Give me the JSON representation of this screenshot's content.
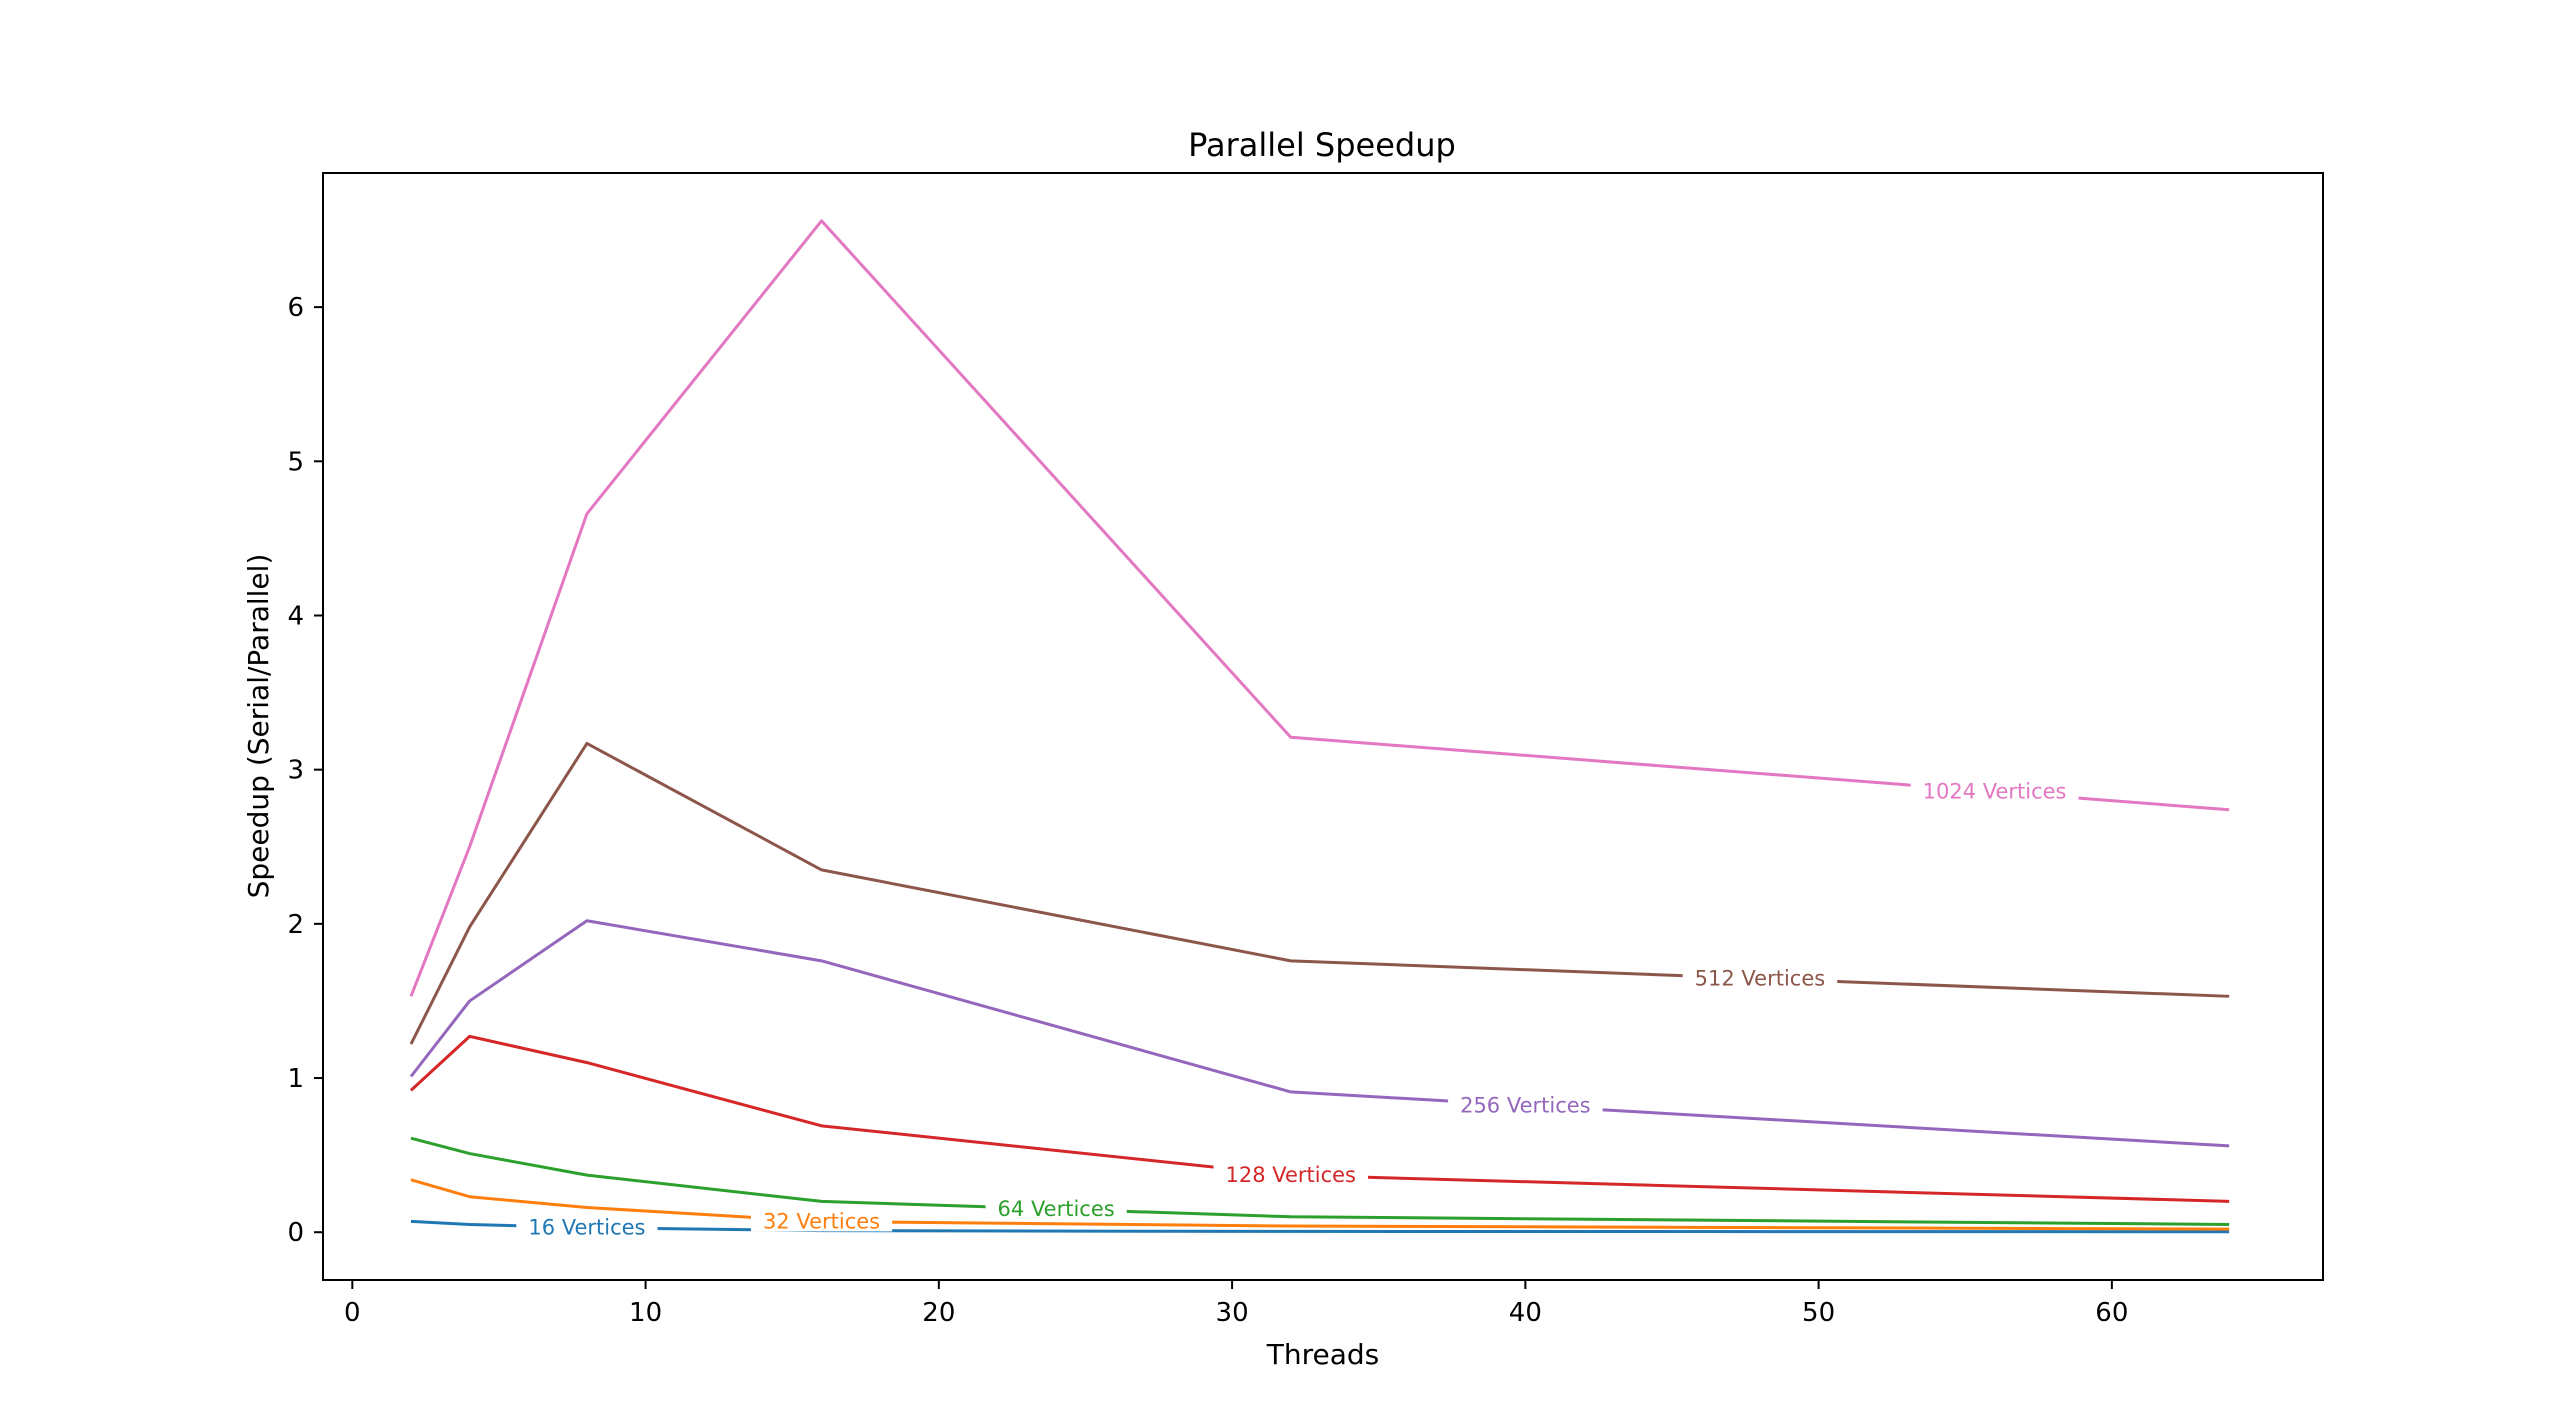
{
  "chart_data": {
    "type": "line",
    "title": "Parallel Speedup",
    "xlabel": "Threads",
    "ylabel": "Speedup (Serial/Parallel)",
    "xlim": [
      -1,
      67.2
    ],
    "ylim": [
      -0.31,
      6.87
    ],
    "xticks": [
      0,
      10,
      20,
      30,
      40,
      50,
      60
    ],
    "yticks": [
      0,
      1,
      2,
      3,
      4,
      5,
      6
    ],
    "grid": false,
    "legend": "none (inline line labels)",
    "x": [
      2,
      4,
      8,
      16,
      32,
      64
    ],
    "series": [
      {
        "name": "16 Vertices",
        "color": "#1f77b4",
        "values": [
          0.07,
          0.05,
          0.03,
          0.01,
          0.005,
          0.003
        ],
        "label_at": 8
      },
      {
        "name": "32 Vertices",
        "color": "#ff7f0e",
        "values": [
          0.34,
          0.23,
          0.16,
          0.07,
          0.04,
          0.02
        ],
        "label_at": 16
      },
      {
        "name": "64 Vertices",
        "color": "#2ca02c",
        "values": [
          0.61,
          0.51,
          0.37,
          0.2,
          0.1,
          0.05
        ],
        "label_at": 24
      },
      {
        "name": "128 Vertices",
        "color": "#d62728",
        "values": [
          0.92,
          1.27,
          1.1,
          0.69,
          0.37,
          0.2
        ],
        "label_at": 32
      },
      {
        "name": "256 Vertices",
        "color": "#9467bd",
        "values": [
          1.01,
          1.5,
          2.02,
          1.76,
          0.91,
          0.56
        ],
        "label_at": 40
      },
      {
        "name": "512 Vertices",
        "color": "#8c564b",
        "values": [
          1.22,
          1.98,
          3.17,
          2.35,
          1.76,
          1.53
        ],
        "label_at": 48
      },
      {
        "name": "1024 Vertices",
        "color": "#e377c2",
        "values": [
          1.53,
          2.5,
          4.66,
          6.56,
          3.21,
          2.74
        ],
        "label_at": 56
      }
    ]
  }
}
